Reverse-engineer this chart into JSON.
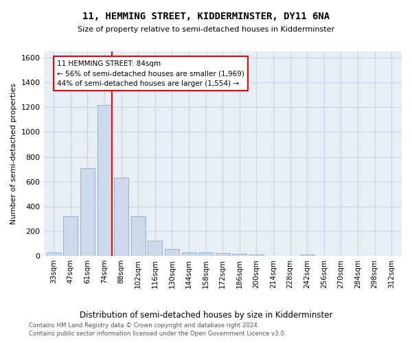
{
  "title": "11, HEMMING STREET, KIDDERMINSTER, DY11 6NA",
  "subtitle": "Size of property relative to semi-detached houses in Kidderminster",
  "xlabel": "Distribution of semi-detached houses by size in Kidderminster",
  "ylabel": "Number of semi-detached properties",
  "bar_color": "#ccd9ea",
  "bar_edge_color": "#9ab3cc",
  "grid_color": "#c8d4e4",
  "bg_color": "#e8eef6",
  "categories": [
    "33sqm",
    "47sqm",
    "61sqm",
    "74sqm",
    "88sqm",
    "102sqm",
    "116sqm",
    "130sqm",
    "144sqm",
    "158sqm",
    "172sqm",
    "186sqm",
    "200sqm",
    "214sqm",
    "228sqm",
    "242sqm",
    "256sqm",
    "270sqm",
    "284sqm",
    "298sqm",
    "312sqm"
  ],
  "values": [
    30,
    320,
    710,
    1220,
    630,
    320,
    120,
    55,
    30,
    25,
    20,
    15,
    10,
    0,
    0,
    10,
    0,
    0,
    0,
    0,
    0
  ],
  "property_label": "11 HEMMING STREET: 84sqm",
  "pct_smaller": 56,
  "n_smaller": 1969,
  "pct_larger": 44,
  "n_larger": 1554,
  "ylim": [
    0,
    1650
  ],
  "yticks": [
    0,
    200,
    400,
    600,
    800,
    1000,
    1200,
    1400,
    1600
  ],
  "footer1": "Contains HM Land Registry data © Crown copyright and database right 2024.",
  "footer2": "Contains public sector information licensed under the Open Government Licence v3.0."
}
